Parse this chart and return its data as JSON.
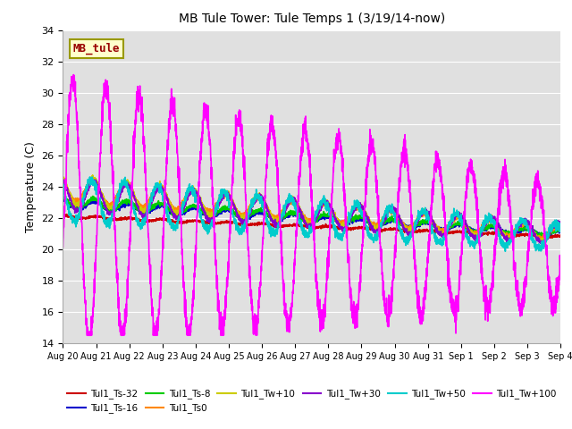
{
  "title": "MB Tule Tower: Tule Temps 1 (3/19/14-now)",
  "ylabel": "Temperature (C)",
  "ylim": [
    14,
    34
  ],
  "yticks": [
    14,
    16,
    18,
    20,
    22,
    24,
    26,
    28,
    30,
    32,
    34
  ],
  "xlim": [
    0,
    15
  ],
  "x_labels": [
    "Aug 20",
    "Aug 21",
    "Aug 22",
    "Aug 23",
    "Aug 24",
    "Aug 25",
    "Aug 26",
    "Aug 27",
    "Aug 28",
    "Aug 29",
    "Aug 30",
    "Aug 31",
    "Sep 1",
    "Sep 2",
    "Sep 3",
    "Sep 4"
  ],
  "bg_color": "#e0e0e0",
  "fig_size": [
    6.4,
    4.8
  ],
  "dpi": 100,
  "series": {
    "Tul1_Ts-32": {
      "color": "#cc0000",
      "lw": 1.2
    },
    "Tul1_Ts-16": {
      "color": "#0000cc",
      "lw": 1.2
    },
    "Tul1_Ts-8": {
      "color": "#00cc00",
      "lw": 1.2
    },
    "Tul1_Ts0": {
      "color": "#ff8800",
      "lw": 1.2
    },
    "Tul1_Tw+10": {
      "color": "#cccc00",
      "lw": 1.2
    },
    "Tul1_Tw+30": {
      "color": "#8800cc",
      "lw": 1.2
    },
    "Tul1_Tw+50": {
      "color": "#00cccc",
      "lw": 1.2
    },
    "Tul1_Tw+100": {
      "color": "#ff00ff",
      "lw": 1.2
    }
  },
  "annotation": {
    "text": "MB_tule",
    "bg": "#ffffcc",
    "border": "#999900",
    "text_color": "#990000",
    "fontsize": 9
  },
  "legend_order": [
    "Tul1_Ts-32",
    "Tul1_Ts-16",
    "Tul1_Ts-8",
    "Tul1_Ts0",
    "Tul1_Tw+10",
    "Tul1_Tw+30",
    "Tul1_Tw+50",
    "Tul1_Tw+100"
  ]
}
